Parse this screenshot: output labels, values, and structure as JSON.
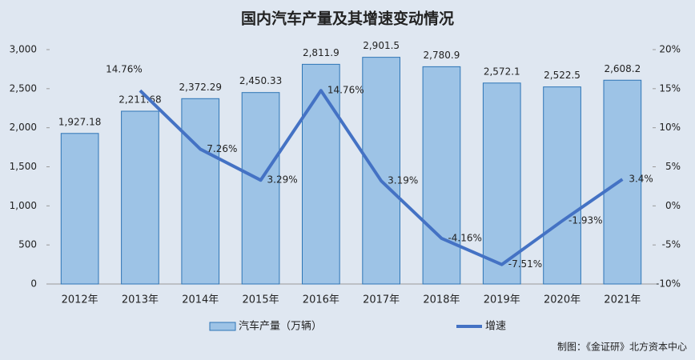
{
  "chart_data": {
    "type": "bar",
    "title": "国内汽车产量及其增速变动情况",
    "categories": [
      "2012年",
      "2013年",
      "2014年",
      "2015年",
      "2016年",
      "2017年",
      "2018年",
      "2019年",
      "2020年",
      "2021年"
    ],
    "series": [
      {
        "name": "汽车产量（万辆）",
        "type": "bar",
        "color": "#9dc3e6",
        "values": [
          1927.18,
          2211.68,
          2372.29,
          2450.33,
          2811.9,
          2901.5,
          2780.9,
          2572.1,
          2522.5,
          2608.2
        ],
        "value_labels": [
          "1,927.18",
          "2,211.68",
          "2,372.29",
          "2,450.33",
          "2,811.9",
          "2,901.5",
          "2,780.9",
          "2,572.1",
          "2,522.5",
          "2,608.2"
        ]
      },
      {
        "name": "增速",
        "type": "line",
        "axis": "y2",
        "color": "#4472c4",
        "values": [
          null,
          14.76,
          7.26,
          3.29,
          14.76,
          3.19,
          -4.16,
          -7.51,
          -1.93,
          3.4
        ],
        "value_labels": [
          null,
          "14.76%",
          "7.26%",
          "3.29%",
          "14.76%",
          "3.19%",
          "-4.16%",
          "-7.51%",
          "-1.93%",
          "3.4%"
        ]
      }
    ],
    "ylim": [
      0,
      3000
    ],
    "yticks": [
      0,
      500,
      {
        "value": 1000,
        "label": "1,000"
      },
      {
        "value": 1500,
        "label": "1,500"
      },
      {
        "value": 2000,
        "label": "2,000"
      },
      {
        "value": 2500,
        "label": "2,500"
      },
      {
        "value": 3000,
        "label": "3,000"
      }
    ],
    "y2lim": [
      -10,
      20
    ],
    "y2ticks": [
      {
        "value": -10,
        "label": "-10%"
      },
      {
        "value": -5,
        "label": "-5%"
      },
      {
        "value": 0,
        "label": "0%"
      },
      {
        "value": 5,
        "label": "5%"
      },
      {
        "value": 10,
        "label": "10%"
      },
      {
        "value": 15,
        "label": "15%"
      },
      {
        "value": 20,
        "label": "20%"
      }
    ],
    "source": "制图：《金证研》北方资本中心",
    "legend": "bottom"
  }
}
